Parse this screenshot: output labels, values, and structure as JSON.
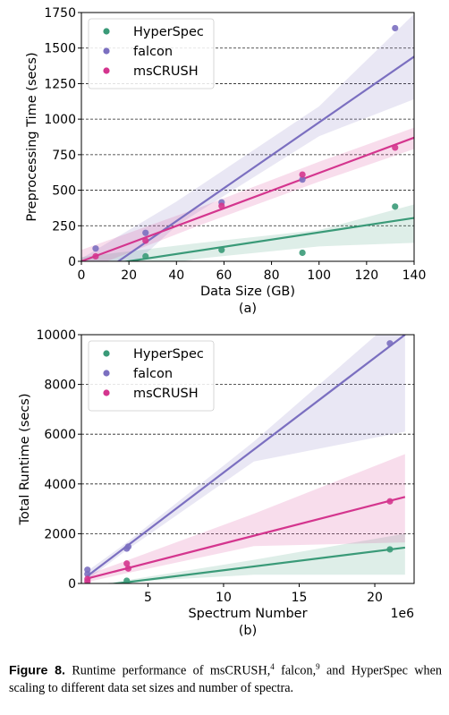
{
  "chart_data": [
    {
      "type": "scatter",
      "xlabel": "Data Size (GB)",
      "ylabel": "Preprocessing Time (secs)",
      "panel_label": "(a)",
      "xlim": [
        0,
        140
      ],
      "ylim": [
        0,
        1750
      ],
      "xticks": [
        "0",
        "20",
        "40",
        "60",
        "80",
        "100",
        "120",
        "140"
      ],
      "yticks": [
        "0",
        "250",
        "500",
        "750",
        "1000",
        "1250",
        "1500",
        "1750"
      ],
      "grid": "horizontal dashed",
      "legend_position": "top-left",
      "series": [
        {
          "name": "HyperSpec",
          "color": "#3a9a78",
          "points": [
            [
              27,
              35
            ],
            [
              59,
              80
            ],
            [
              93,
              60
            ],
            [
              132,
              385
            ]
          ],
          "fit": [
            [
              0,
              -50
            ],
            [
              140,
              305
            ]
          ],
          "band": {
            "upper": [
              [
                0,
                30
              ],
              [
                50,
                130
              ],
              [
                100,
                220
              ],
              [
                140,
                400
              ]
            ],
            "lower": [
              [
                0,
                -110
              ],
              [
                50,
                20
              ],
              [
                100,
                105
              ],
              [
                140,
                130
              ]
            ]
          }
        },
        {
          "name": "falcon",
          "color": "#7b6fc0",
          "points": [
            [
              6,
              90
            ],
            [
              27,
              200
            ],
            [
              59,
              415
            ],
            [
              93,
              575
            ],
            [
              132,
              1640
            ]
          ],
          "fit": [
            [
              0,
              -180
            ],
            [
              140,
              1440
            ]
          ],
          "band": {
            "upper": [
              [
                0,
                20
              ],
              [
                40,
                420
              ],
              [
                100,
                1090
              ],
              [
                140,
                1740
              ]
            ],
            "lower": [
              [
                0,
                -360
              ],
              [
                40,
                250
              ],
              [
                100,
                880
              ],
              [
                140,
                1140
              ]
            ]
          }
        },
        {
          "name": "msCRUSH",
          "color": "#d4358e",
          "points": [
            [
              6,
              35
            ],
            [
              27,
              145
            ],
            [
              59,
              390
            ],
            [
              93,
              610
            ],
            [
              132,
              800
            ]
          ],
          "fit": [
            [
              0,
              0
            ],
            [
              140,
              870
            ]
          ],
          "band": {
            "upper": [
              [
                0,
                80
              ],
              [
                50,
                380
              ],
              [
                100,
                700
              ],
              [
                140,
                940
              ]
            ],
            "lower": [
              [
                0,
                -70
              ],
              [
                50,
                255
              ],
              [
                100,
                560
              ],
              [
                140,
                790
              ]
            ]
          }
        }
      ]
    },
    {
      "type": "scatter",
      "xlabel": "Spectrum Number",
      "x_offset_text": "1e6",
      "ylabel": "Total Runtime (secs)",
      "panel_label": "(b)",
      "xlim": [
        0.6,
        22.6
      ],
      "ylim": [
        0,
        10000
      ],
      "xticks": [
        "5",
        "10",
        "15",
        "20"
      ],
      "yticks": [
        "0",
        "2000",
        "4000",
        "6000",
        "8000",
        "10000"
      ],
      "grid": "horizontal dashed",
      "legend_position": "top-left",
      "series": [
        {
          "name": "HyperSpec",
          "color": "#3a9a78",
          "points": [
            [
              1.0,
              -60
            ],
            [
              3.6,
              110
            ],
            [
              21.0,
              1370
            ]
          ],
          "fit": [
            [
              1.0,
              -150
            ],
            [
              22.0,
              1440
            ]
          ],
          "band": {
            "upper": [
              [
                1.0,
                -100
              ],
              [
                3.5,
                120
              ],
              [
                12,
                950
              ],
              [
                22.0,
                2000
              ]
            ],
            "lower": [
              [
                1.0,
                -220
              ],
              [
                3.5,
                60
              ],
              [
                12,
                350
              ],
              [
                22.0,
                350
              ]
            ]
          }
        },
        {
          "name": "falcon",
          "color": "#7b6fc0",
          "points": [
            [
              1.0,
              550
            ],
            [
              1.0,
              380
            ],
            [
              3.6,
              1400
            ],
            [
              3.7,
              1480
            ],
            [
              21.0,
              9650
            ]
          ],
          "fit": [
            [
              1.0,
              300
            ],
            [
              22.0,
              10000
            ]
          ],
          "band": {
            "upper": [
              [
                1.0,
                500
              ],
              [
                3.5,
                1600
              ],
              [
                12,
                5700
              ],
              [
                22.0,
                11000
              ]
            ],
            "lower": [
              [
                1.0,
                150
              ],
              [
                3.5,
                1300
              ],
              [
                12,
                4900
              ],
              [
                22.0,
                6100
              ]
            ]
          }
        },
        {
          "name": "msCRUSH",
          "color": "#d4358e",
          "points": [
            [
              1.0,
              180
            ],
            [
              1.0,
              80
            ],
            [
              3.6,
              800
            ],
            [
              3.7,
              600
            ],
            [
              21.0,
              3300
            ]
          ],
          "fit": [
            [
              1.0,
              200
            ],
            [
              22.0,
              3480
            ]
          ],
          "band": {
            "upper": [
              [
                1.0,
                350
              ],
              [
                3.5,
                900
              ],
              [
                12,
                2800
              ],
              [
                22.0,
                5200
              ]
            ],
            "lower": [
              [
                1.0,
                60
              ],
              [
                3.5,
                400
              ],
              [
                12,
                1500
              ],
              [
                22.0,
                1650
              ]
            ]
          }
        }
      ]
    }
  ],
  "caption": {
    "label": "Figure 8.",
    "text": "Runtime performance of msCRUSH,",
    "ref1": "4",
    "text2": " falcon,",
    "ref2": "9",
    "text3": " and HyperSpec when scaling to different data set sizes and number of spectra."
  }
}
